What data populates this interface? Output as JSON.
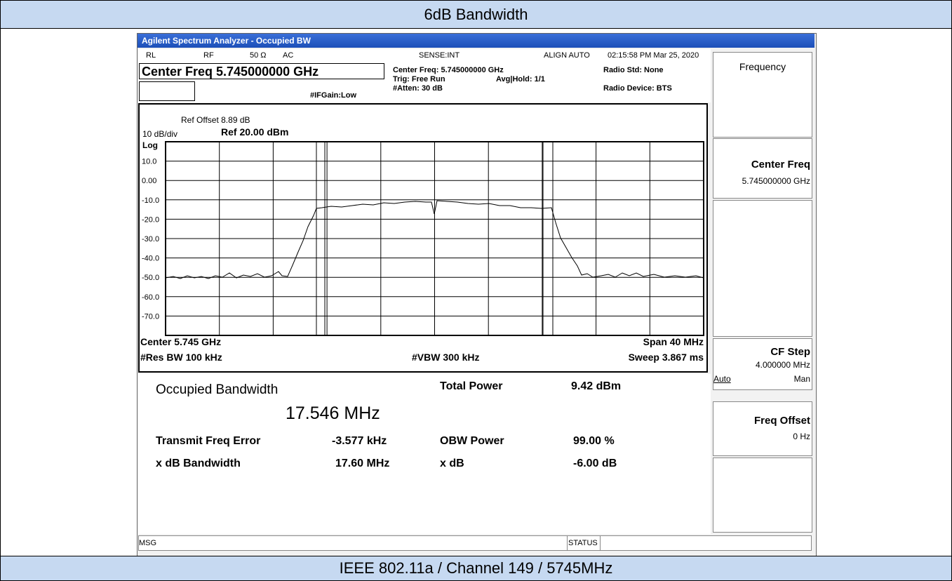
{
  "header": {
    "title": "6dB Bandwidth"
  },
  "footer": {
    "caption": "IEEE 802.11a / Channel 149 / 5745MHz"
  },
  "window": {
    "title": "Agilent Spectrum Analyzer - Occupied BW"
  },
  "status_line": {
    "rl": "RL",
    "rf": "RF",
    "impedance": "50 Ω",
    "coupling": "AC",
    "sense": "SENSE:INT",
    "align": "ALIGN AUTO",
    "datetime": "02:15:58 PM Mar 25, 2020"
  },
  "settings": {
    "center_box": "Center Freq 5.745000000 GHz",
    "center": "Center Freq: 5.745000000 GHz",
    "trig": "Trig: Free Run",
    "avg": "Avg|Hold: 1/1",
    "atten": "#Atten: 30 dB",
    "ifgain": "#IFGain:Low",
    "radio_std": "Radio Std: None",
    "radio_device": "Radio Device: BTS"
  },
  "plot": {
    "ref_offset": "Ref Offset 8.89 dB",
    "scale": "10 dB/div",
    "ref_level": "Ref 20.00 dBm",
    "log": "Log",
    "y_labels": [
      "10.0",
      "0.00",
      "-10.0",
      "-20.0",
      "-30.0",
      "-40.0",
      "-50.0",
      "-60.0",
      "-70.0"
    ],
    "center": "Center 5.745 GHz",
    "span": "Span 40 MHz",
    "rbw": "#Res BW 100 kHz",
    "vbw": "#VBW 300 kHz",
    "sweep": "Sweep 3.867 ms"
  },
  "results": {
    "title": "Occupied Bandwidth",
    "obw": "17.546 MHz",
    "rows": [
      [
        "Total Power",
        "9.42 dBm"
      ],
      [
        "Transmit Freq Error",
        "-3.577 kHz"
      ],
      [
        "OBW Power",
        "99.00 %"
      ],
      [
        "x dB Bandwidth",
        "17.60 MHz"
      ],
      [
        "x dB",
        "-6.00 dB"
      ]
    ]
  },
  "statusbar": {
    "msg": "MSG",
    "status": "STATUS"
  },
  "softkeys": {
    "menu": "Frequency",
    "center_freq": "Center Freq",
    "center_freq_value": "5.745000000 GHz",
    "cf_step": "CF Step",
    "cf_step_value": "4.000000 MHz",
    "auto": "Auto",
    "man": "Man",
    "freq_offset": "Freq Offset",
    "freq_offset_value": "0 Hz"
  }
}
